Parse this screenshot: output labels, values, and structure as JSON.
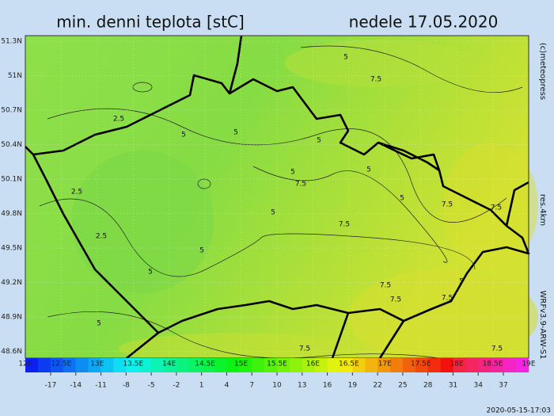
{
  "header": {
    "title": "min. denni teplota [stC]",
    "date": "nedele 17.05.2020"
  },
  "side_labels": {
    "copyright": "(c)meteopress",
    "resolution": "res.4km",
    "model": "WRFv3.9-ARW-S1"
  },
  "lat_labels": [
    "51.3N",
    "51N",
    "50.7N",
    "50.4N",
    "50.1N",
    "49.8N",
    "49.5N",
    "49.2N",
    "48.9N",
    "48.6N"
  ],
  "lon_labels": [
    "12E",
    "12.5E",
    "13E",
    "13.5E",
    "14E",
    "14.5E",
    "15E",
    "15.5E",
    "16E",
    "16.5E",
    "17E",
    "17.5E",
    "18E",
    "18.5E",
    "19E"
  ],
  "contour_labels": [
    "5",
    "7.5",
    "2.5",
    "5",
    "5",
    "5",
    "5",
    "5",
    "7.5",
    "2.5",
    "5",
    "7.5",
    "7.5",
    "5",
    "7.5",
    "2.5",
    "5",
    "5",
    "5",
    "7.5",
    "7.5",
    "7.5",
    "5",
    "7.5",
    "7.5"
  ],
  "colorbar_ticks": [
    -17,
    -14,
    -11,
    -8,
    -5,
    -2,
    1,
    4,
    7,
    10,
    13,
    16,
    19,
    22,
    25,
    28,
    31,
    34,
    37
  ],
  "timestamp": "2020-05-15-17:03"
}
